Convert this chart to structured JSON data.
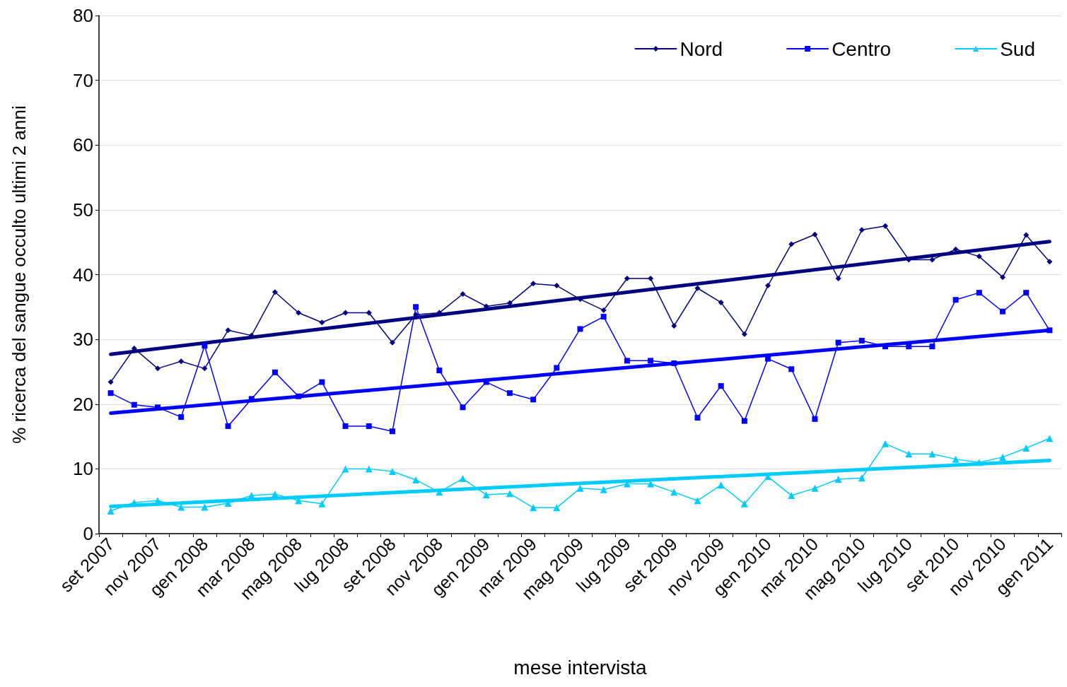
{
  "chart_data": {
    "type": "line",
    "xlabel": "mese intervista",
    "ylabel": "% ricerca del sangue occulto ultimi 2 anni",
    "categories": [
      "set 2007",
      null,
      "nov 2007",
      null,
      "gen 2008",
      null,
      "mar 2008",
      null,
      "mag 2008",
      null,
      "lug 2008",
      null,
      "set 2008",
      null,
      "nov 2008",
      null,
      "gen 2009",
      null,
      "mar 2009",
      null,
      "mag 2009",
      null,
      "lug 2009",
      null,
      "set 2009",
      null,
      "nov 2009",
      null,
      "gen 2010",
      null,
      "mar 2010",
      null,
      "mag 2010",
      null,
      "lug 2010",
      null,
      "set 2010",
      null,
      "nov 2010",
      null,
      "gen 2011"
    ],
    "series": [
      {
        "name": "Nord",
        "color": "#000080",
        "marker": "diamond",
        "values": [
          23.4,
          28.6,
          25.5,
          26.6,
          25.5,
          31.4,
          30.6,
          37.3,
          34.1,
          32.6,
          34.1,
          34.1,
          29.5,
          33.8,
          34.1,
          37.0,
          35.1,
          35.6,
          38.6,
          38.3,
          36.2,
          34.5,
          39.4,
          39.4,
          32.1,
          37.9,
          35.7,
          30.8,
          38.3,
          44.7,
          46.2,
          39.4,
          46.9,
          47.5,
          42.3,
          42.3,
          43.9,
          42.8,
          39.6,
          46.1,
          42.0
        ]
      },
      {
        "name": "Centro",
        "color": "#0000ff",
        "marker": "square",
        "values": [
          21.7,
          19.9,
          19.5,
          18.0,
          29.0,
          16.6,
          20.8,
          24.9,
          21.2,
          23.4,
          16.6,
          16.6,
          15.8,
          35.0,
          25.2,
          19.5,
          23.4,
          21.7,
          20.7,
          25.6,
          31.6,
          33.5,
          26.7,
          26.7,
          26.3,
          17.9,
          22.8,
          17.4,
          27.0,
          25.4,
          17.7,
          29.5,
          29.8,
          28.9,
          28.9,
          28.9,
          36.1,
          37.2,
          34.3,
          37.2,
          31.4
        ]
      },
      {
        "name": "Sud",
        "color": "#00ccff",
        "marker": "triangle",
        "values": [
          3.5,
          4.8,
          5.1,
          4.1,
          4.1,
          4.7,
          5.9,
          6.1,
          5.1,
          4.6,
          10.0,
          10.0,
          9.6,
          8.3,
          6.4,
          8.5,
          6.0,
          6.2,
          4.0,
          4.0,
          7.0,
          6.8,
          7.7,
          7.7,
          6.4,
          5.1,
          7.5,
          4.6,
          8.8,
          5.9,
          7.0,
          8.4,
          8.6,
          13.9,
          12.3,
          12.3,
          11.5,
          11.0,
          11.8,
          13.2,
          14.7
        ]
      },
      {
        "type": "line",
        "color": "#000080",
        "marker": "none",
        "x": [
          "set 2007",
          "gen 2011"
        ],
        "values": [
          27.7,
          45.1
        ]
      },
      {
        "type": "line",
        "color": "#0000ff",
        "marker": "none",
        "x": [
          "set 2007",
          "gen 2011"
        ],
        "values": [
          18.6,
          31.4
        ]
      },
      {
        "type": "line",
        "color": "#00ccff",
        "marker": "none",
        "x": [
          "set 2007",
          "gen 2011"
        ],
        "values": [
          4.2,
          11.3
        ]
      }
    ],
    "ylim": [
      0,
      80
    ],
    "yticks": [
      0,
      10,
      20,
      30,
      40,
      50,
      60,
      70,
      80
    ],
    "grid": "y",
    "legend": "top right"
  }
}
